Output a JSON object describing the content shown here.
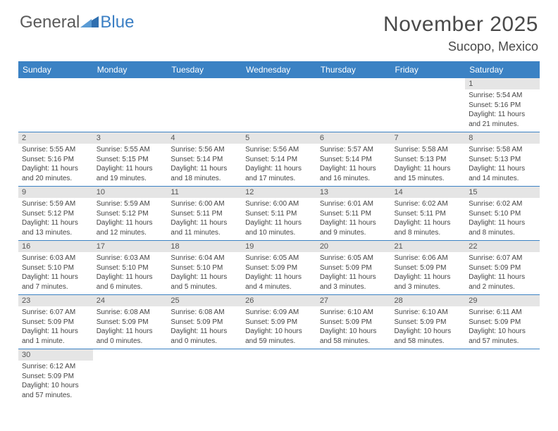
{
  "logo": {
    "text1": "General",
    "text2": "Blue",
    "tri_color": "#2f6fb0"
  },
  "title": {
    "month": "November 2025",
    "location": "Sucopo, Mexico"
  },
  "colors": {
    "header_bg": "#3b82c4",
    "header_text": "#ffffff",
    "daynum_bg": "#e5e5e5",
    "cell_border": "#3b82c4"
  },
  "day_headers": [
    "Sunday",
    "Monday",
    "Tuesday",
    "Wednesday",
    "Thursday",
    "Friday",
    "Saturday"
  ],
  "weeks": [
    [
      null,
      null,
      null,
      null,
      null,
      null,
      {
        "n": "1",
        "sr": "5:54 AM",
        "ss": "5:16 PM",
        "dl": "11 hours and 21 minutes."
      }
    ],
    [
      {
        "n": "2",
        "sr": "5:55 AM",
        "ss": "5:16 PM",
        "dl": "11 hours and 20 minutes."
      },
      {
        "n": "3",
        "sr": "5:55 AM",
        "ss": "5:15 PM",
        "dl": "11 hours and 19 minutes."
      },
      {
        "n": "4",
        "sr": "5:56 AM",
        "ss": "5:14 PM",
        "dl": "11 hours and 18 minutes."
      },
      {
        "n": "5",
        "sr": "5:56 AM",
        "ss": "5:14 PM",
        "dl": "11 hours and 17 minutes."
      },
      {
        "n": "6",
        "sr": "5:57 AM",
        "ss": "5:14 PM",
        "dl": "11 hours and 16 minutes."
      },
      {
        "n": "7",
        "sr": "5:58 AM",
        "ss": "5:13 PM",
        "dl": "11 hours and 15 minutes."
      },
      {
        "n": "8",
        "sr": "5:58 AM",
        "ss": "5:13 PM",
        "dl": "11 hours and 14 minutes."
      }
    ],
    [
      {
        "n": "9",
        "sr": "5:59 AM",
        "ss": "5:12 PM",
        "dl": "11 hours and 13 minutes."
      },
      {
        "n": "10",
        "sr": "5:59 AM",
        "ss": "5:12 PM",
        "dl": "11 hours and 12 minutes."
      },
      {
        "n": "11",
        "sr": "6:00 AM",
        "ss": "5:11 PM",
        "dl": "11 hours and 11 minutes."
      },
      {
        "n": "12",
        "sr": "6:00 AM",
        "ss": "5:11 PM",
        "dl": "11 hours and 10 minutes."
      },
      {
        "n": "13",
        "sr": "6:01 AM",
        "ss": "5:11 PM",
        "dl": "11 hours and 9 minutes."
      },
      {
        "n": "14",
        "sr": "6:02 AM",
        "ss": "5:11 PM",
        "dl": "11 hours and 8 minutes."
      },
      {
        "n": "15",
        "sr": "6:02 AM",
        "ss": "5:10 PM",
        "dl": "11 hours and 8 minutes."
      }
    ],
    [
      {
        "n": "16",
        "sr": "6:03 AM",
        "ss": "5:10 PM",
        "dl": "11 hours and 7 minutes."
      },
      {
        "n": "17",
        "sr": "6:03 AM",
        "ss": "5:10 PM",
        "dl": "11 hours and 6 minutes."
      },
      {
        "n": "18",
        "sr": "6:04 AM",
        "ss": "5:10 PM",
        "dl": "11 hours and 5 minutes."
      },
      {
        "n": "19",
        "sr": "6:05 AM",
        "ss": "5:09 PM",
        "dl": "11 hours and 4 minutes."
      },
      {
        "n": "20",
        "sr": "6:05 AM",
        "ss": "5:09 PM",
        "dl": "11 hours and 3 minutes."
      },
      {
        "n": "21",
        "sr": "6:06 AM",
        "ss": "5:09 PM",
        "dl": "11 hours and 3 minutes."
      },
      {
        "n": "22",
        "sr": "6:07 AM",
        "ss": "5:09 PM",
        "dl": "11 hours and 2 minutes."
      }
    ],
    [
      {
        "n": "23",
        "sr": "6:07 AM",
        "ss": "5:09 PM",
        "dl": "11 hours and 1 minute."
      },
      {
        "n": "24",
        "sr": "6:08 AM",
        "ss": "5:09 PM",
        "dl": "11 hours and 0 minutes."
      },
      {
        "n": "25",
        "sr": "6:08 AM",
        "ss": "5:09 PM",
        "dl": "11 hours and 0 minutes."
      },
      {
        "n": "26",
        "sr": "6:09 AM",
        "ss": "5:09 PM",
        "dl": "10 hours and 59 minutes."
      },
      {
        "n": "27",
        "sr": "6:10 AM",
        "ss": "5:09 PM",
        "dl": "10 hours and 58 minutes."
      },
      {
        "n": "28",
        "sr": "6:10 AM",
        "ss": "5:09 PM",
        "dl": "10 hours and 58 minutes."
      },
      {
        "n": "29",
        "sr": "6:11 AM",
        "ss": "5:09 PM",
        "dl": "10 hours and 57 minutes."
      }
    ],
    [
      {
        "n": "30",
        "sr": "6:12 AM",
        "ss": "5:09 PM",
        "dl": "10 hours and 57 minutes."
      },
      null,
      null,
      null,
      null,
      null,
      null
    ]
  ],
  "labels": {
    "sunrise": "Sunrise: ",
    "sunset": "Sunset: ",
    "daylight": "Daylight: "
  }
}
